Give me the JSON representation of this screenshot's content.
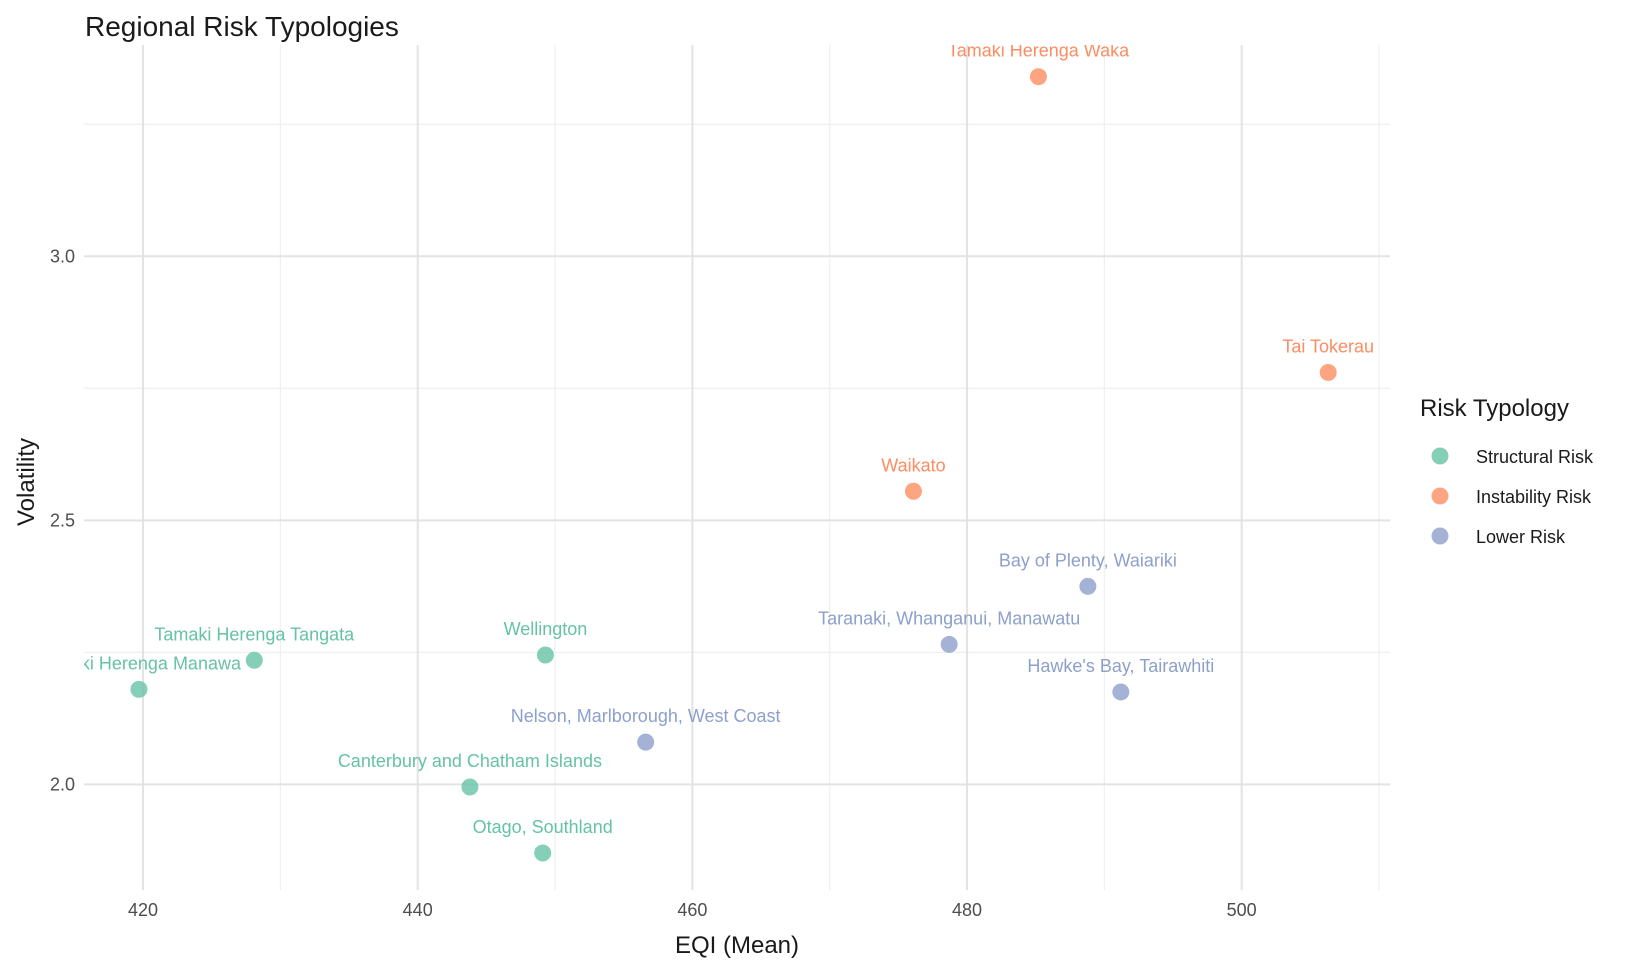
{
  "chart_data": {
    "type": "scatter",
    "title": "Regional Risk Typologies",
    "xlabel": "EQI (Mean)",
    "ylabel": "Volatility",
    "xlim": [
      415.7,
      510.8
    ],
    "ylim": [
      1.8,
      3.4
    ],
    "x_ticks": [
      420,
      440,
      460,
      480,
      500
    ],
    "y_ticks": [
      2.0,
      2.5,
      3.0
    ],
    "x_tick_labels": [
      "420",
      "440",
      "460",
      "480",
      "500"
    ],
    "y_tick_labels": [
      "2.0",
      "2.5",
      "3.0"
    ],
    "grid": true,
    "legend": {
      "title": "Risk Typology",
      "placement": "right",
      "entries": [
        "Structural Risk",
        "Instability Risk",
        "Lower Risk"
      ]
    },
    "colors": {
      "Structural Risk": "#66c2a5",
      "Instability Risk": "#fc8d62",
      "Lower Risk": "#8da0cb"
    },
    "series": [
      {
        "name": "Structural Risk",
        "points": [
          {
            "label": "Tamaki Herenga Manawa",
            "x": 419.7,
            "y": 2.18
          },
          {
            "label": "Tamaki Herenga Tangata",
            "x": 428.1,
            "y": 2.235
          },
          {
            "label": "Wellington",
            "x": 449.3,
            "y": 2.245
          },
          {
            "label": "Canterbury and Chatham Islands",
            "x": 443.8,
            "y": 1.995
          },
          {
            "label": "Otago, Southland",
            "x": 449.1,
            "y": 1.87
          }
        ]
      },
      {
        "name": "Instability Risk",
        "points": [
          {
            "label": "Tamaki Herenga Waka",
            "x": 485.2,
            "y": 3.34
          },
          {
            "label": "Tai Tokerau",
            "x": 506.3,
            "y": 2.78
          },
          {
            "label": "Waikato",
            "x": 476.1,
            "y": 2.555
          }
        ]
      },
      {
        "name": "Lower Risk",
        "points": [
          {
            "label": "Bay of Plenty, Waiariki",
            "x": 488.8,
            "y": 2.375
          },
          {
            "label": "Taranaki, Whanganui, Manawatu",
            "x": 478.7,
            "y": 2.265
          },
          {
            "label": "Hawke's Bay, Tairawhiti",
            "x": 491.2,
            "y": 2.175
          },
          {
            "label": "Nelson, Marlborough, West Coast",
            "x": 456.6,
            "y": 2.08
          }
        ]
      }
    ]
  }
}
